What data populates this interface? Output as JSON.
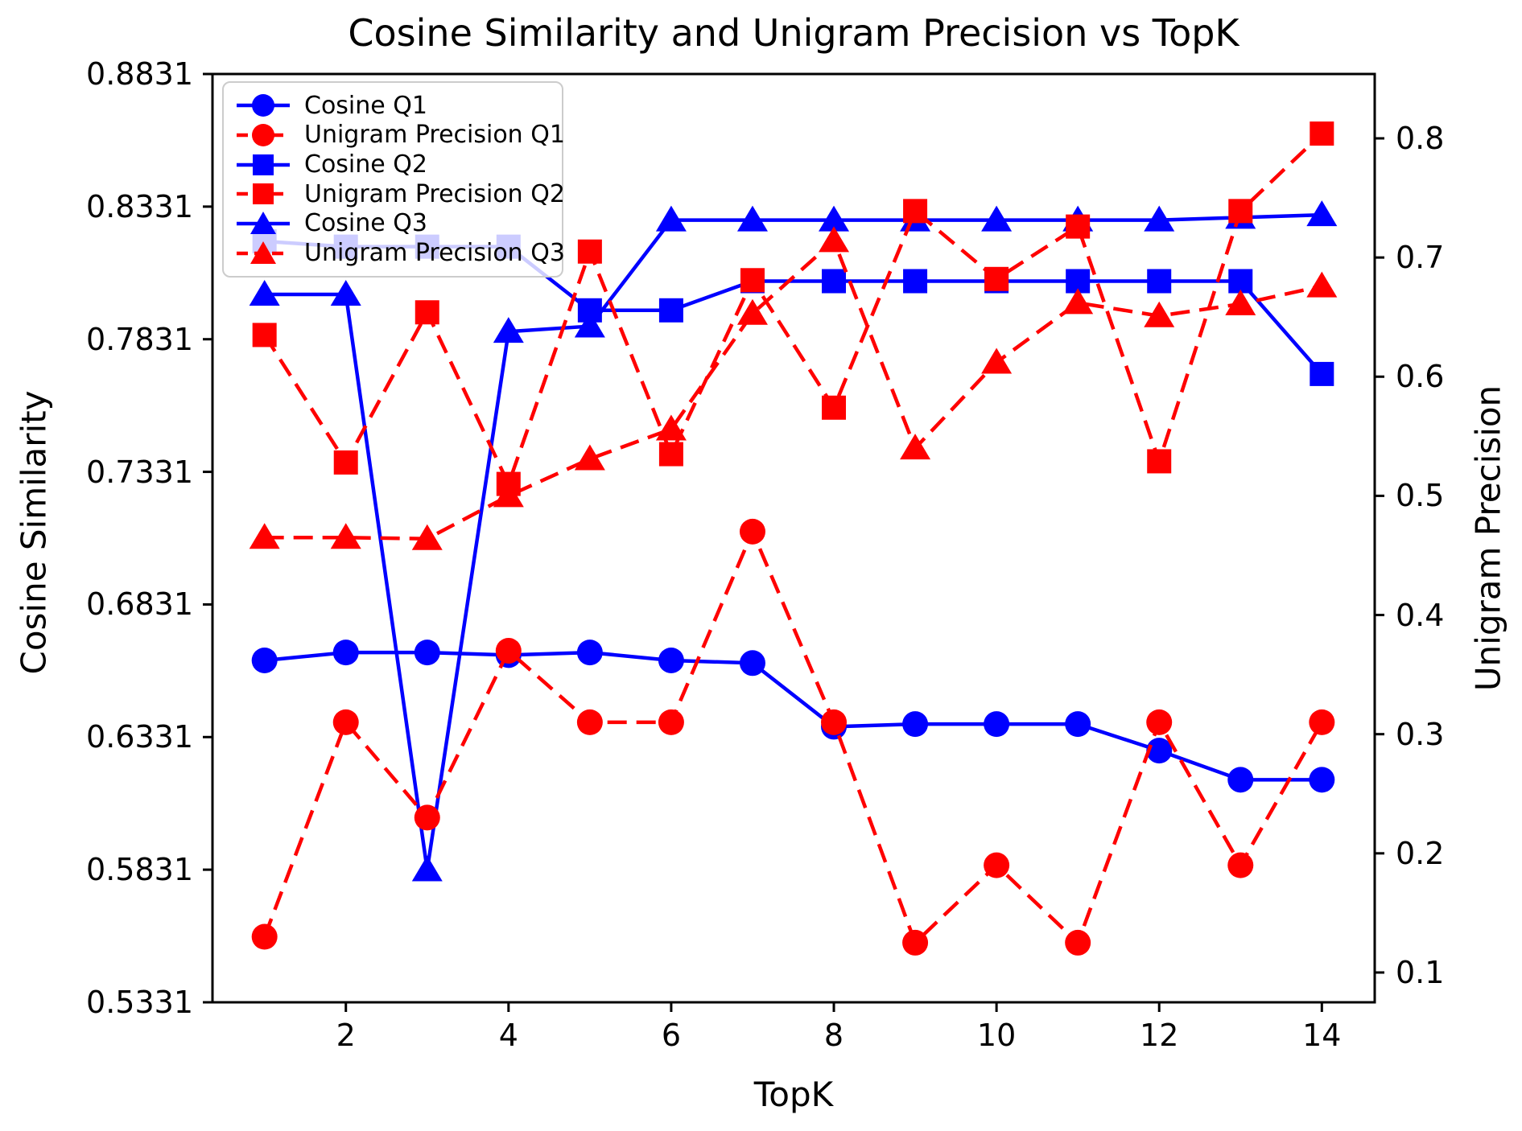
{
  "title": "Cosine Similarity and Unigram Precision vs TopK",
  "axes": {
    "x_label": "TopK",
    "y_left_label": "Cosine Similarity",
    "y_right_label": "Unigram Precision"
  },
  "chart_data": {
    "type": "line",
    "title": "Cosine Similarity and Unigram Precision vs TopK",
    "xlabel": "TopK",
    "ylabel_left": "Cosine Similarity",
    "ylabel_right": "Unigram Precision",
    "grid": false,
    "legend_position": "upper left",
    "xlim": [
      0.36,
      14.65
    ],
    "ylim_left": [
      0.5331,
      0.8831
    ],
    "ylim_right": [
      0.075,
      0.854
    ],
    "x": [
      1,
      2,
      3,
      4,
      5,
      6,
      7,
      8,
      9,
      10,
      11,
      12,
      13,
      14
    ],
    "x_tick_labels": [
      "2",
      "4",
      "6",
      "8",
      "10",
      "12",
      "14"
    ],
    "x_tick_values": [
      2,
      4,
      6,
      8,
      10,
      12,
      14
    ],
    "y_left_tick_labels": [
      "0.8831",
      "0.8331",
      "0.7831",
      "0.7331",
      "0.6831",
      "0.6331",
      "0.5831",
      "0.5331"
    ],
    "y_left_tick_values": [
      0.8831,
      0.8331,
      0.7831,
      0.7331,
      0.6831,
      0.6331,
      0.5831,
      0.5331
    ],
    "y_right_tick_labels": [
      "0.8",
      "0.7",
      "0.6",
      "0.5",
      "0.4",
      "0.3",
      "0.2",
      "0.1"
    ],
    "y_right_tick_values": [
      0.8,
      0.7,
      0.6,
      0.5,
      0.4,
      0.3,
      0.2,
      0.1
    ],
    "series": [
      {
        "name": "Cosine Q1",
        "axis": "left",
        "color": "#0000ff",
        "linestyle": "solid",
        "marker": "circle",
        "values": [
          0.662,
          0.665,
          0.665,
          0.664,
          0.665,
          0.662,
          0.661,
          0.637,
          0.638,
          0.638,
          0.638,
          0.628,
          0.617,
          0.617
        ]
      },
      {
        "name": "Unigram Precision Q1",
        "axis": "right",
        "color": "#ff0000",
        "linestyle": "dashed",
        "marker": "circle",
        "values": [
          0.13,
          0.31,
          0.23,
          0.37,
          0.31,
          0.31,
          0.47,
          0.31,
          0.125,
          0.19,
          0.125,
          0.31,
          0.19,
          0.31
        ]
      },
      {
        "name": "Cosine Q2",
        "axis": "left",
        "color": "#0000ff",
        "linestyle": "solid",
        "marker": "square",
        "values": [
          0.82,
          0.818,
          0.818,
          0.818,
          0.794,
          0.794,
          0.805,
          0.805,
          0.805,
          0.805,
          0.805,
          0.805,
          0.805,
          0.77
        ]
      },
      {
        "name": "Unigram Precision Q2",
        "axis": "right",
        "color": "#ff0000",
        "linestyle": "dashed",
        "marker": "square",
        "values": [
          0.635,
          0.528,
          0.654,
          0.51,
          0.705,
          0.535,
          0.681,
          0.574,
          0.739,
          0.682,
          0.726,
          0.529,
          0.739,
          0.804
        ]
      },
      {
        "name": "Cosine Q3",
        "axis": "left",
        "color": "#0000ff",
        "linestyle": "solid",
        "marker": "triangle",
        "values": [
          0.8,
          0.8,
          0.583,
          0.786,
          0.788,
          0.828,
          0.828,
          0.828,
          0.828,
          0.828,
          0.828,
          0.828,
          0.829,
          0.83
        ]
      },
      {
        "name": "Unigram Precision Q3",
        "axis": "right",
        "color": "#ff0000",
        "linestyle": "dashed",
        "marker": "triangle",
        "values": [
          0.465,
          0.465,
          0.464,
          0.5,
          0.531,
          0.556,
          0.653,
          0.714,
          0.54,
          0.612,
          0.662,
          0.651,
          0.661,
          0.676
        ]
      }
    ]
  },
  "colors": {
    "blue": "#0000ff",
    "red": "#ff0000",
    "spine": "#000000",
    "legend_border": "#cccccc",
    "background": "#ffffff"
  }
}
